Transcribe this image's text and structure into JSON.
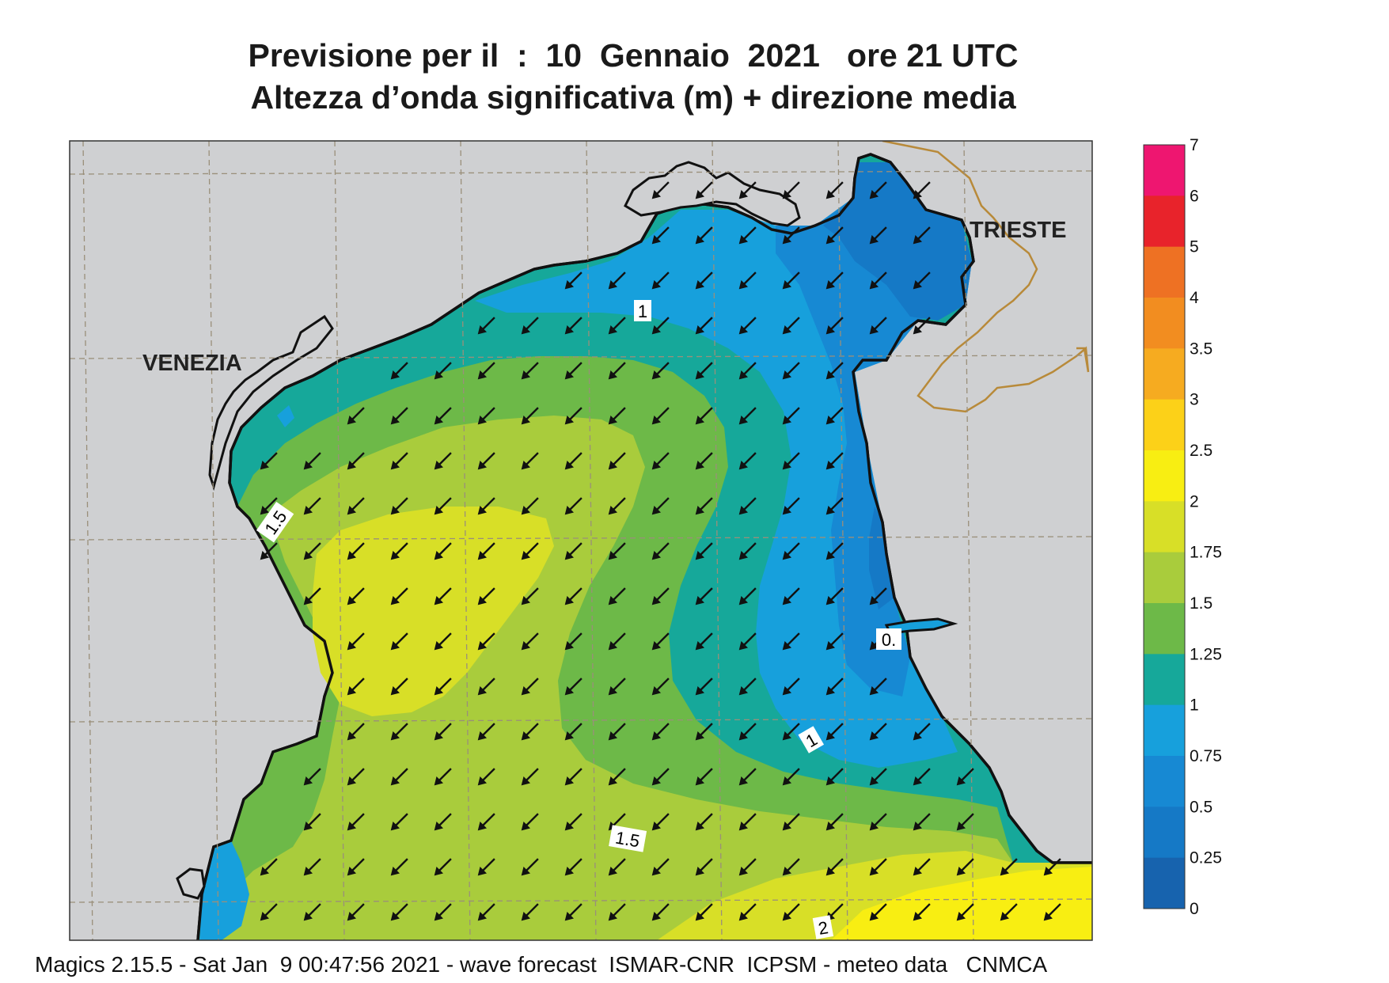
{
  "title": {
    "line1": "Previsione per il  :  10  Gennaio  2021   ore 21 UTC",
    "line2": "Altezza d’onda significativa (m) + direzione media"
  },
  "map": {
    "cities": [
      {
        "name": "VENEZIA"
      },
      {
        "name": "TRIESTE"
      }
    ],
    "contour_labels": [
      "1",
      "1.5",
      "0.",
      "1",
      "1.5",
      "2"
    ],
    "arrow_direction": "south-west",
    "colors": {
      "land": "#cfd0d2",
      "coast": "#111111",
      "border": "#b88a3a"
    }
  },
  "colorbar": {
    "ticks": [
      "7",
      "6",
      "5",
      "4",
      "3.5",
      "3",
      "2.5",
      "2",
      "1.75",
      "1.5",
      "1.25",
      "1",
      "0.75",
      "0.5",
      "0.25",
      "0"
    ],
    "colors": [
      "#ee1670",
      "#e8232b",
      "#ee7123",
      "#f28d20",
      "#f6ab20",
      "#fcd118",
      "#f8ee12",
      "#d8df27",
      "#a9cc3c",
      "#6db948",
      "#16a89a",
      "#17a0dc",
      "#1789d3",
      "#1579c6",
      "#1763ae"
    ]
  },
  "footer": "Magics 2.15.5 - Sat Jan  9 00:47:56 2021 - wave forecast  ISMAR-CNR  ICPSM - meteo data   CNMCA"
}
